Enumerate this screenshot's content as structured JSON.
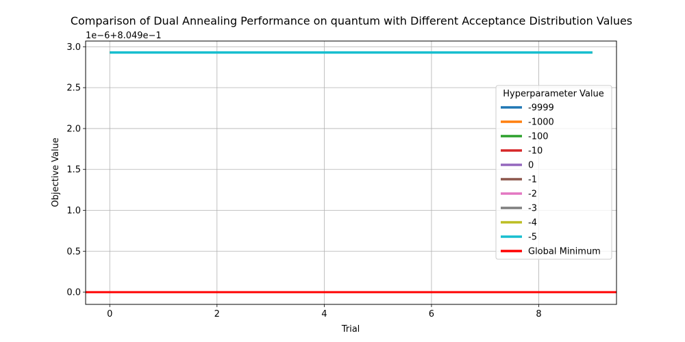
{
  "chart_data": {
    "type": "line",
    "title": "Comparison of Dual Annealing Performance on quantum with Different Acceptance Distribution Values",
    "xlabel": "Trial",
    "ylabel": "Objective Value",
    "offset_label": "1e−6+8.049e−1",
    "xlim": [
      -0.45,
      9.45
    ],
    "ylim": [
      -0.15,
      3.07
    ],
    "x_ticks": [
      0,
      2,
      4,
      6,
      8
    ],
    "x_tick_labels": [
      "0",
      "2",
      "4",
      "6",
      "8"
    ],
    "y_ticks": [
      0,
      0.5,
      1.0,
      1.5,
      2.0,
      2.5,
      3.0
    ],
    "y_tick_labels": [
      "0.0",
      "0.5",
      "1.0",
      "1.5",
      "2.0",
      "2.5",
      "3.0"
    ],
    "grid": true,
    "legend_title": "Hyperparameter Value",
    "legend_position": "center-right",
    "x": [
      0,
      1,
      2,
      3,
      4,
      5,
      6,
      7,
      8,
      9
    ],
    "series": [
      {
        "name": "-9999",
        "color": "#1f77b4",
        "values": [
          2.93,
          2.93,
          2.93,
          2.93,
          2.93,
          2.93,
          2.93,
          2.93,
          2.93,
          2.93
        ]
      },
      {
        "name": "-1000",
        "color": "#ff7f0e",
        "values": [
          2.93,
          2.93,
          2.93,
          2.93,
          2.93,
          2.93,
          2.93,
          2.93,
          2.93,
          2.93
        ]
      },
      {
        "name": "-100",
        "color": "#2ca02c",
        "values": [
          2.93,
          2.93,
          2.93,
          2.93,
          2.93,
          2.93,
          2.93,
          2.93,
          2.93,
          2.93
        ]
      },
      {
        "name": "-10",
        "color": "#d62728",
        "values": [
          2.93,
          2.93,
          2.93,
          2.93,
          2.93,
          2.93,
          2.93,
          2.93,
          2.93,
          2.93
        ]
      },
      {
        "name": "0",
        "color": "#9467bd",
        "values": [
          2.93,
          2.93,
          2.93,
          2.93,
          2.93,
          2.93,
          2.93,
          2.93,
          2.93,
          2.93
        ]
      },
      {
        "name": "-1",
        "color": "#8c564b",
        "values": [
          2.93,
          2.93,
          2.93,
          2.93,
          2.93,
          2.93,
          2.93,
          2.93,
          2.93,
          2.93
        ]
      },
      {
        "name": "-2",
        "color": "#e377c2",
        "values": [
          2.93,
          2.93,
          2.93,
          2.93,
          2.93,
          2.93,
          2.93,
          2.93,
          2.93,
          2.93
        ]
      },
      {
        "name": "-3",
        "color": "#7f7f7f",
        "values": [
          2.93,
          2.93,
          2.93,
          2.93,
          2.93,
          2.93,
          2.93,
          2.93,
          2.93,
          2.93
        ]
      },
      {
        "name": "-4",
        "color": "#bcbd22",
        "values": [
          2.93,
          2.93,
          2.93,
          2.93,
          2.93,
          2.93,
          2.93,
          2.93,
          2.93,
          2.93
        ]
      },
      {
        "name": "-5",
        "color": "#17becf",
        "values": [
          2.93,
          2.93,
          2.93,
          2.93,
          2.93,
          2.93,
          2.93,
          2.93,
          2.93,
          2.93
        ]
      }
    ],
    "global_minimum": {
      "name": "Global Minimum",
      "color": "#ff0000",
      "value": 0.0
    }
  }
}
